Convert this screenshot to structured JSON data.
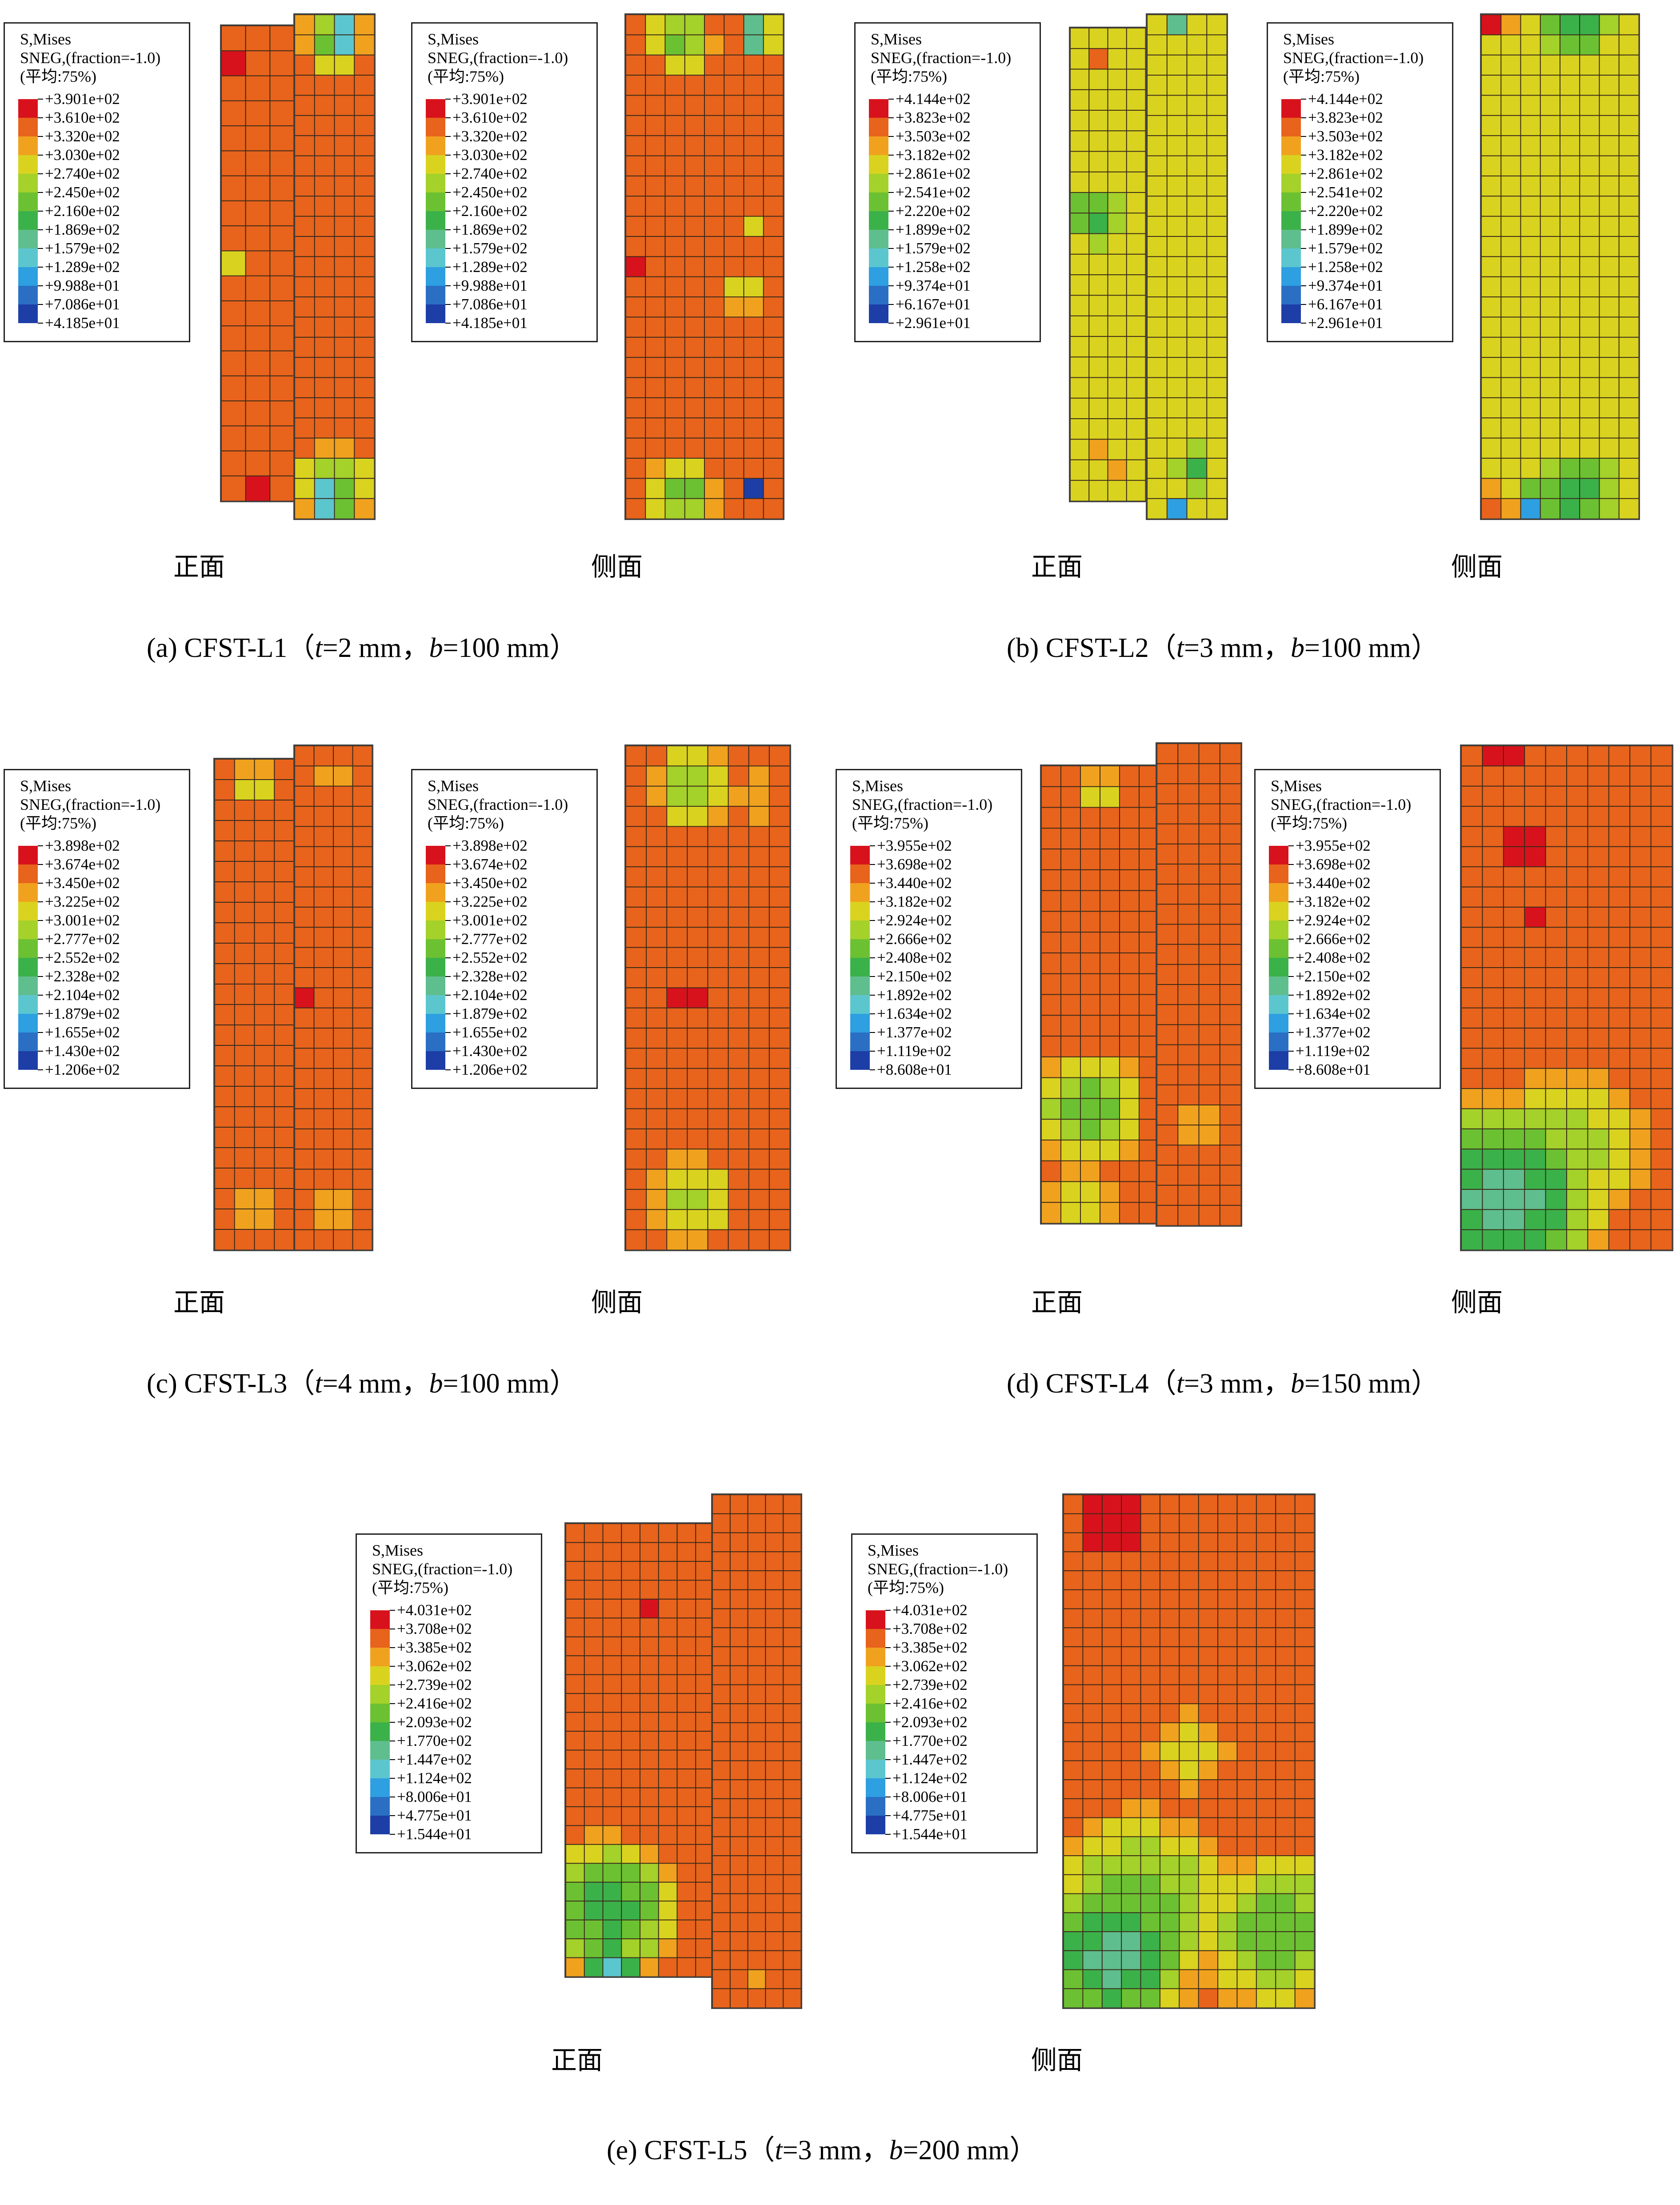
{
  "colormap": [
    "#d8121c",
    "#e8631c",
    "#f0a21e",
    "#d9d31f",
    "#a4d12a",
    "#6cc132",
    "#3bb14a",
    "#5fbe8e",
    "#5cc6cf",
    "#2e9fe0",
    "#2a6fc4",
    "#1d3ea6"
  ],
  "legend_header": [
    "S,Mises",
    "SNEG,(fraction=-1.0)",
    "(平均:75%)"
  ],
  "view_labels": {
    "front": "正面",
    "side": "侧面"
  },
  "cases": [
    {
      "id": "a",
      "caption": {
        "prefix": "(a) CFST-L1（",
        "t_var": "t",
        "t_rest": "=2 mm，",
        "b_var": "b",
        "b_rest": "=100 mm）"
      },
      "legend_values": [
        "+3.901e+02",
        "+3.610e+02",
        "+3.320e+02",
        "+3.030e+02",
        "+2.740e+02",
        "+2.450e+02",
        "+2.160e+02",
        "+1.869e+02",
        "+1.579e+02",
        "+1.289e+02",
        "+9.988e+01",
        "+7.086e+01",
        "+4.185e+01"
      ]
    },
    {
      "id": "b",
      "caption": {
        "prefix": "(b) CFST-L2（",
        "t_var": "t",
        "t_rest": "=3 mm，",
        "b_var": "b",
        "b_rest": "=100 mm）"
      },
      "legend_values": [
        "+4.144e+02",
        "+3.823e+02",
        "+3.503e+02",
        "+3.182e+02",
        "+2.861e+02",
        "+2.541e+02",
        "+2.220e+02",
        "+1.899e+02",
        "+1.579e+02",
        "+1.258e+02",
        "+9.374e+01",
        "+6.167e+01",
        "+2.961e+01"
      ]
    },
    {
      "id": "c",
      "caption": {
        "prefix": "(c) CFST-L3（",
        "t_var": "t",
        "t_rest": "=4 mm，",
        "b_var": "b",
        "b_rest": "=100 mm）"
      },
      "legend_values": [
        "+3.898e+02",
        "+3.674e+02",
        "+3.450e+02",
        "+3.225e+02",
        "+3.001e+02",
        "+2.777e+02",
        "+2.552e+02",
        "+2.328e+02",
        "+2.104e+02",
        "+1.879e+02",
        "+1.655e+02",
        "+1.430e+02",
        "+1.206e+02"
      ]
    },
    {
      "id": "d",
      "caption": {
        "prefix": "(d) CFST-L4（",
        "t_var": "t",
        "t_rest": "=3 mm，",
        "b_var": "b",
        "b_rest": "=150 mm）"
      },
      "legend_values": [
        "+3.955e+02",
        "+3.698e+02",
        "+3.440e+02",
        "+3.182e+02",
        "+2.924e+02",
        "+2.666e+02",
        "+2.408e+02",
        "+2.150e+02",
        "+1.892e+02",
        "+1.634e+02",
        "+1.377e+02",
        "+1.119e+02",
        "+8.608e+01"
      ]
    },
    {
      "id": "e",
      "caption": {
        "prefix": "(e) CFST-L5（",
        "t_var": "t",
        "t_rest": "=3 mm，",
        "b_var": "b",
        "b_rest": "=200 mm）"
      },
      "legend_values": [
        "+4.031e+02",
        "+3.708e+02",
        "+3.385e+02",
        "+3.062e+02",
        "+2.739e+02",
        "+2.416e+02",
        "+2.093e+02",
        "+1.770e+02",
        "+1.447e+02",
        "+1.124e+02",
        "+8.006e+01",
        "+4.775e+01",
        "+1.544e+01"
      ]
    }
  ]
}
